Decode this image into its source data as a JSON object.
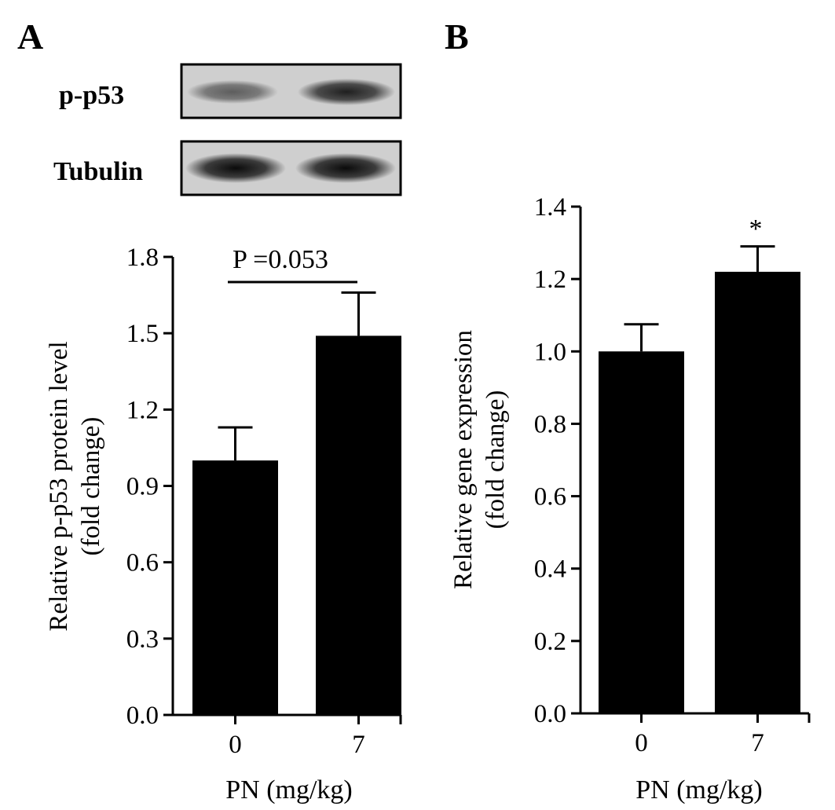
{
  "panels": [
    {
      "label": "A",
      "blots": [
        {
          "label": "p-p53",
          "bands": [
            0.55,
            0.85
          ]
        },
        {
          "label": "Tubulin",
          "bands": [
            0.95,
            0.95
          ]
        }
      ]
    },
    {
      "label": "B"
    }
  ],
  "annotations": {
    "a_pvalue": "P =0.053",
    "b_star": "*"
  },
  "chart_data": [
    {
      "type": "bar",
      "panel": "A",
      "categories": [
        "0",
        "7"
      ],
      "values": [
        1.0,
        1.49
      ],
      "errors": [
        0.13,
        0.17
      ],
      "ylim": [
        0,
        1.8
      ],
      "yticks": [
        "0.0",
        "0.3",
        "0.6",
        "0.9",
        "1.2",
        "1.5",
        "1.8"
      ],
      "ylabel_line1": "Relative p-p53 protein level",
      "ylabel_line2": "(fold change)",
      "xlabel": "PN (mg/kg)",
      "bar_color": "#000000",
      "grid": false
    },
    {
      "type": "bar",
      "panel": "B",
      "categories": [
        "0",
        "7"
      ],
      "values": [
        1.0,
        1.22
      ],
      "errors": [
        0.075,
        0.07
      ],
      "ylim": [
        0,
        1.4
      ],
      "yticks": [
        "0.0",
        "0.2",
        "0.4",
        "0.6",
        "0.8",
        "1.0",
        "1.2",
        "1.4"
      ],
      "ylabel_line1": "Relative gene expression",
      "ylabel_line2": "(fold change)",
      "xlabel": "PN (mg/kg)",
      "bar_color": "#000000",
      "grid": false
    }
  ]
}
